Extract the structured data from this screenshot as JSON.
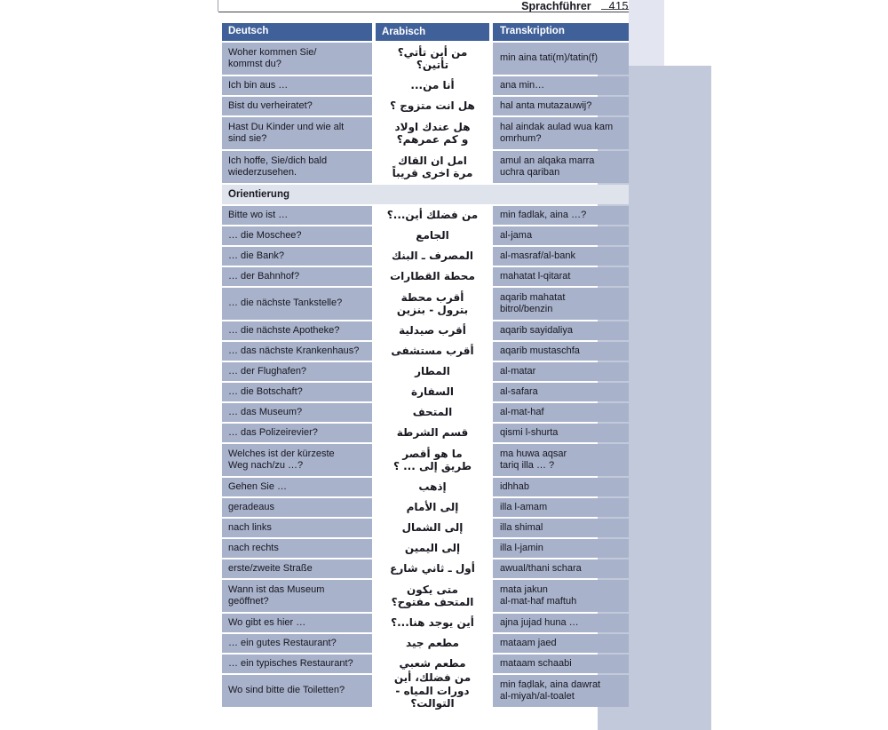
{
  "header": {
    "title": "Sprachführer",
    "page_number": "415"
  },
  "side": {
    "spine_label": "Sprachführer"
  },
  "colors": {
    "header_bg": "#40609a",
    "row_bg": "#a8b2cb",
    "arabic_band_bg": "#c2c9da",
    "section_bg": "#dfe3ec",
    "margin_strip_bg": "#e3e6f0",
    "tab_green": "#a6ca89",
    "text": "#17171f"
  },
  "table": {
    "columns": {
      "german": "Deutsch",
      "arabic": "Arabisch",
      "transcription": "Transkription"
    },
    "rows": [
      {
        "de": "Woher kommen Sie/\nkommst du?",
        "ar": "من أين تأتي؟ تأتين؟",
        "tr": "min aina tati(m)/tatin(f)",
        "size": "double"
      },
      {
        "de": "Ich bin aus …",
        "ar": "أنا من...",
        "tr": "ana min…",
        "size": "single"
      },
      {
        "de": "Bist du verheiratet?",
        "ar": "هل انت متزوج ؟",
        "tr": "hal anta mutazauwij?",
        "size": "single"
      },
      {
        "de": "Hast Du Kinder und wie alt\nsind sie?",
        "ar": "هل عندك اولاد\nو كم عمرهم؟",
        "tr": "hal aindak aulad wua kam\nomrhum?",
        "size": "double"
      },
      {
        "de": "Ich hoffe, Sie/dich bald\nwiederzusehen.",
        "ar": "امل ان القاك\nمرة اخرى قريباً",
        "tr": "amul an alqaka marra\nuchra qariban",
        "size": "double"
      },
      {
        "section": "Orientierung"
      },
      {
        "de": "Bitte wo ist …",
        "ar": "من فضلك أين...؟",
        "tr": "min fadlak, aina …?",
        "size": "single"
      },
      {
        "de": "… die Moschee?",
        "ar": "الجامع",
        "tr": "al-jama",
        "size": "single"
      },
      {
        "de": "… die Bank?",
        "ar": "المصرف ـ البنك",
        "tr": "al-masraf/al-bank",
        "size": "single"
      },
      {
        "de": "… der Bahnhof?",
        "ar": "محطة القطارات",
        "tr": "mahatat l-qitarat",
        "size": "single"
      },
      {
        "de": "… die nächste Tankstelle?",
        "ar": "أقرب محطة\nبترول - بنزين",
        "tr": "aqarib mahatat\nbitrol/benzin",
        "size": "double"
      },
      {
        "de": "… die nächste Apotheke?",
        "ar": "أقرب صيدلية",
        "tr": "aqarib sayidaliya",
        "size": "single"
      },
      {
        "de": "… das nächste Krankenhaus?",
        "ar": "أقرب مستشفى",
        "tr": "aqarib mustaschfa",
        "size": "single"
      },
      {
        "de": "… der Flughafen?",
        "ar": "المطار",
        "tr": "al-matar",
        "size": "single"
      },
      {
        "de": "… die Botschaft?",
        "ar": "السفارة",
        "tr": "al-safara",
        "size": "single"
      },
      {
        "de": "… das Museum?",
        "ar": "المتحف",
        "tr": "al-mat-haf",
        "size": "single"
      },
      {
        "de": "… das Polizeirevier?",
        "ar": "قسم الشرطة",
        "tr": "qismi l-shurta",
        "size": "single"
      },
      {
        "de": "Welches ist der kürzeste\nWeg nach/zu …?",
        "ar": "ما هو أقصر\nطريق إلى ... ؟",
        "tr": "ma huwa aqsar\ntariq illa … ?",
        "size": "double"
      },
      {
        "de": "Gehen Sie …",
        "ar": "إذهب",
        "tr": "idhhab",
        "size": "single"
      },
      {
        "de": "geradeaus",
        "ar": "إلى الأمام",
        "tr": "illa l-amam",
        "size": "single"
      },
      {
        "de": "nach links",
        "ar": "إلى الشمال",
        "tr": "illa shimal",
        "size": "single"
      },
      {
        "de": "nach rechts",
        "ar": "إلى اليمين",
        "tr": "illa l-jamin",
        "size": "single"
      },
      {
        "de": "erste/zweite Straße",
        "ar": "أول ـ ثاني شارع",
        "tr": "awual/thani schara",
        "size": "single"
      },
      {
        "de": "Wann ist das Museum\ngeöffnet?",
        "ar": "متى يكون\nالمتحف مفتوح؟",
        "tr": "mata jakun\nal-mat-haf maftuh",
        "size": "double"
      },
      {
        "de": "Wo gibt es hier …",
        "ar": "أين يوجد هنا...؟",
        "tr": "ajna jujad huna …",
        "size": "single"
      },
      {
        "de": "… ein gutes Restaurant?",
        "ar": "مطعم جيد",
        "tr": "mataam jaed",
        "size": "single"
      },
      {
        "de": "… ein typisches Restaurant?",
        "ar": "مطعم شعبي",
        "tr": "mataam schaabi",
        "size": "single"
      },
      {
        "de": "Wo sind bitte die Toiletten?",
        "ar": "من فضلك، أين\nدورات المياه - التوالت؟",
        "tr": "min faḍlak, aina dawrat\nal-miyah/al-toalet",
        "size": "double"
      }
    ]
  }
}
